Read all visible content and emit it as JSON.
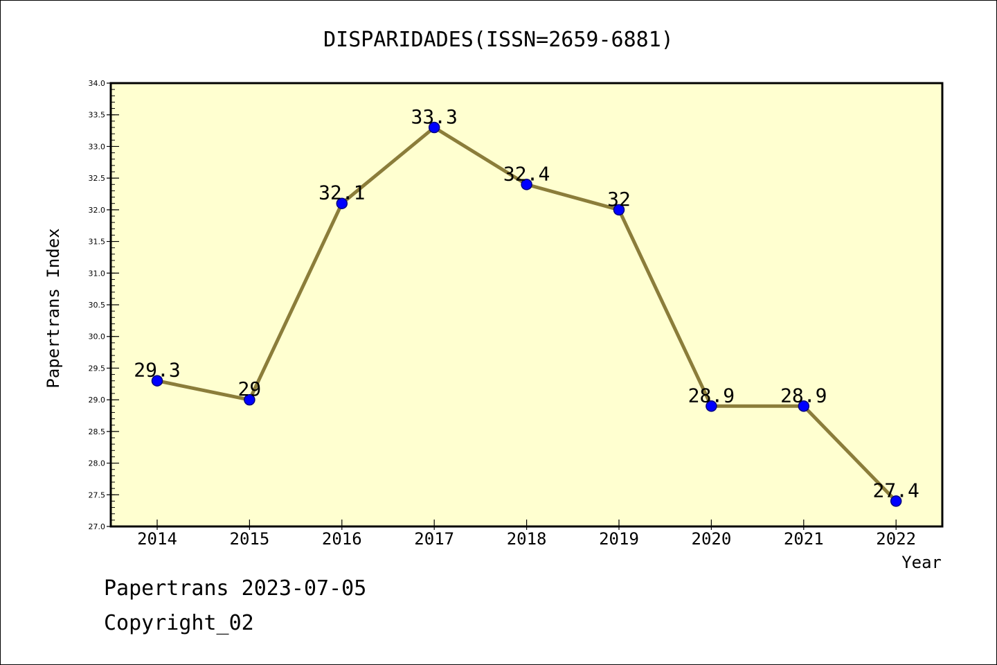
{
  "chart_data": {
    "type": "line",
    "title": "DISPARIDADES(ISSN=2659-6881)",
    "xlabel": "Year",
    "ylabel": "Papertrans Index",
    "categories": [
      "2014",
      "2015",
      "2016",
      "2017",
      "2018",
      "2019",
      "2020",
      "2021",
      "2022"
    ],
    "series": [
      {
        "values": [
          29.3,
          29,
          32.1,
          33.3,
          32.4,
          32,
          28.9,
          28.9,
          27.4
        ],
        "data_labels": [
          "29.3",
          "29",
          "32.1",
          "33.3",
          "32.4",
          "32",
          "28.9",
          "28.9",
          "27.4"
        ]
      }
    ],
    "ylim": [
      27.0,
      34.0
    ],
    "yticks": [
      "27.0",
      "27.5",
      "28.0",
      "28.5",
      "29.0",
      "29.5",
      "30.0",
      "30.5",
      "31.0",
      "31.5",
      "32.0",
      "32.5",
      "33.0",
      "33.5",
      "34.0"
    ],
    "grid": false,
    "legend": "none",
    "colors": {
      "plot_background": "#FFFFD0",
      "line": "#8B7D3A",
      "marker": "#0000FF",
      "marker_edge": "#000080",
      "axes": "#000000"
    }
  },
  "footer": {
    "line1": "Papertrans 2023-07-05",
    "line2": "Copyright_02"
  }
}
